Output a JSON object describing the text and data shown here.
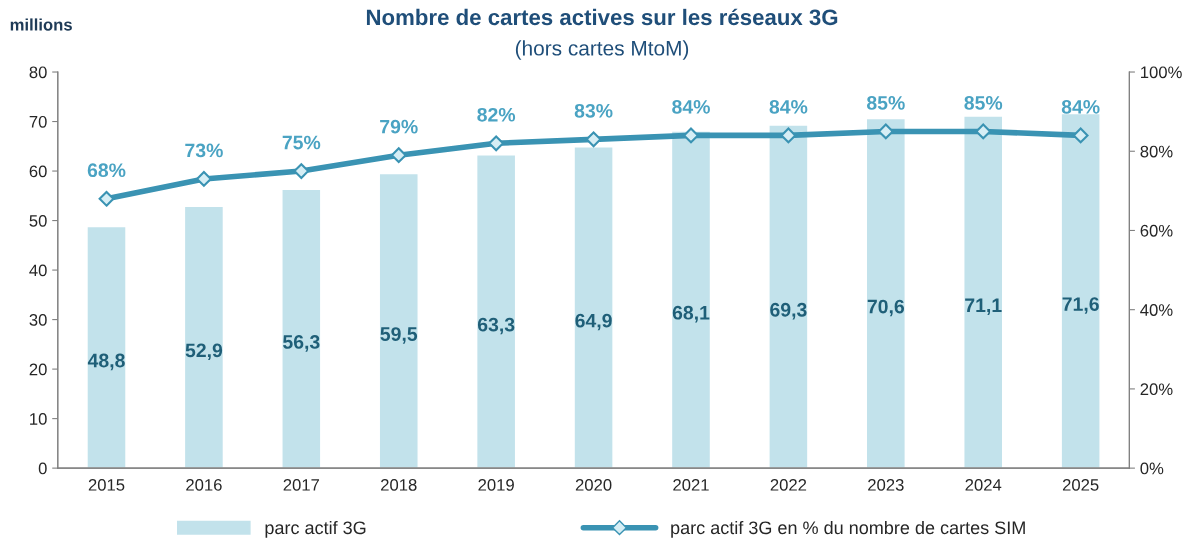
{
  "chart_data": {
    "type": "bar",
    "title": "Nombre de cartes actives sur les réseaux 3G",
    "subtitle": "(hors cartes MtoM)",
    "ylabel": "millions",
    "categories": [
      "2015",
      "2016",
      "2017",
      "2018",
      "2019",
      "2020",
      "2021",
      "2022",
      "2023",
      "2024",
      "2025"
    ],
    "series": [
      {
        "name": "parc actif 3G",
        "color": "#c2e2eb",
        "values": [
          48.8,
          52.9,
          56.3,
          59.5,
          63.3,
          64.9,
          68.1,
          69.3,
          70.6,
          71.1,
          71.6
        ],
        "value_labels": [
          "48,8",
          "52,9",
          "56,3",
          "59,5",
          "63,3",
          "64,9",
          "68,1",
          "69,3",
          "70,6",
          "71,1",
          "71,6"
        ]
      },
      {
        "name": "parc actif 3G en % du nombre de cartes SIM",
        "type": "line",
        "axis": "y2",
        "color": "#3a93b3",
        "marker": "diamond",
        "line_style": "solid",
        "values": [
          68,
          73,
          75,
          79,
          82,
          83,
          84,
          84,
          85,
          85,
          84
        ],
        "value_labels": [
          "68%",
          "73%",
          "75%",
          "79%",
          "82%",
          "83%",
          "84%",
          "84%",
          "85%",
          "85%",
          "84%"
        ]
      }
    ],
    "ylim": [
      0,
      80
    ],
    "yticks": [
      0,
      10,
      20,
      30,
      40,
      50,
      60,
      70,
      80
    ],
    "y2lim": [
      0,
      100
    ],
    "y2ticks": [
      {
        "value": 0,
        "label": "0%"
      },
      {
        "value": 20,
        "label": "20%"
      },
      {
        "value": 40,
        "label": "40%"
      },
      {
        "value": 60,
        "label": "60%"
      },
      {
        "value": 80,
        "label": "80%"
      },
      {
        "value": 100,
        "label": "100%"
      }
    ],
    "grid": false,
    "legend": "bottom"
  }
}
